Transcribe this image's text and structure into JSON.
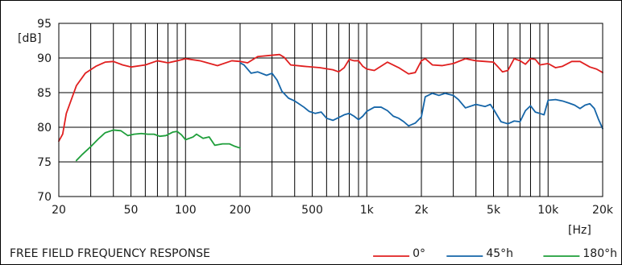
{
  "chart_data": {
    "type": "line",
    "title": "FREE FIELD FREQUENCY RESPONSE",
    "xlabel": "[Hz]",
    "ylabel": "[dB]",
    "x_scale": "log",
    "xlim": [
      20,
      20000
    ],
    "ylim": [
      70,
      95
    ],
    "grid": true,
    "legend_position": "bottom-right",
    "x_ticks": [
      20,
      50,
      100,
      200,
      500,
      1000,
      2000,
      5000,
      10000,
      20000
    ],
    "x_tick_labels": [
      "20",
      "50",
      "100",
      "200",
      "500",
      "1k",
      "2k",
      "5k",
      "10k",
      "20k"
    ],
    "y_ticks": [
      70,
      75,
      80,
      85,
      90,
      95
    ],
    "y_tick_labels": [
      "70",
      "75",
      "80",
      "85",
      "90",
      "95"
    ],
    "series": [
      {
        "name": "0°",
        "color": "#e02020",
        "points": [
          [
            20,
            78
          ],
          [
            21,
            79
          ],
          [
            22,
            82
          ],
          [
            25,
            86
          ],
          [
            28,
            87.8
          ],
          [
            32,
            88.8
          ],
          [
            36,
            89.4
          ],
          [
            40,
            89.5
          ],
          [
            45,
            89
          ],
          [
            50,
            88.7
          ],
          [
            60,
            89
          ],
          [
            70,
            89.6
          ],
          [
            80,
            89.3
          ],
          [
            90,
            89.6
          ],
          [
            100,
            89.9
          ],
          [
            120,
            89.6
          ],
          [
            150,
            88.9
          ],
          [
            180,
            89.6
          ],
          [
            200,
            89.5
          ],
          [
            220,
            89.3
          ],
          [
            250,
            90.2
          ],
          [
            300,
            90.4
          ],
          [
            330,
            90.5
          ],
          [
            350,
            90.1
          ],
          [
            380,
            89
          ],
          [
            450,
            88.8
          ],
          [
            550,
            88.6
          ],
          [
            650,
            88.3
          ],
          [
            700,
            88
          ],
          [
            750,
            88.6
          ],
          [
            800,
            89.8
          ],
          [
            850,
            89.6
          ],
          [
            900,
            89.6
          ],
          [
            950,
            88.8
          ],
          [
            1000,
            88.4
          ],
          [
            1100,
            88.2
          ],
          [
            1300,
            89.4
          ],
          [
            1500,
            88.6
          ],
          [
            1700,
            87.7
          ],
          [
            1850,
            87.9
          ],
          [
            2000,
            89.6
          ],
          [
            2100,
            89.9
          ],
          [
            2300,
            89
          ],
          [
            2600,
            88.9
          ],
          [
            3000,
            89.2
          ],
          [
            3500,
            89.9
          ],
          [
            4000,
            89.6
          ],
          [
            4500,
            89.5
          ],
          [
            5000,
            89.4
          ],
          [
            5300,
            88.7
          ],
          [
            5600,
            88
          ],
          [
            6000,
            88.2
          ],
          [
            6500,
            89.9
          ],
          [
            7000,
            89.6
          ],
          [
            7500,
            89.1
          ],
          [
            8000,
            89.9
          ],
          [
            8500,
            89.8
          ],
          [
            9000,
            89
          ],
          [
            10000,
            89.2
          ],
          [
            11000,
            88.6
          ],
          [
            12000,
            88.8
          ],
          [
            13500,
            89.5
          ],
          [
            15000,
            89.5
          ],
          [
            17000,
            88.7
          ],
          [
            18500,
            88.4
          ],
          [
            20000,
            87.9
          ]
        ]
      },
      {
        "name": "45°h",
        "color": "#1565a8",
        "points": [
          [
            200,
            89.3
          ],
          [
            210,
            89
          ],
          [
            230,
            87.8
          ],
          [
            250,
            88
          ],
          [
            280,
            87.5
          ],
          [
            300,
            87.8
          ],
          [
            320,
            86.8
          ],
          [
            340,
            85.2
          ],
          [
            370,
            84.2
          ],
          [
            400,
            83.8
          ],
          [
            450,
            82.9
          ],
          [
            480,
            82.3
          ],
          [
            520,
            82
          ],
          [
            560,
            82.2
          ],
          [
            600,
            81.3
          ],
          [
            650,
            81
          ],
          [
            700,
            81.4
          ],
          [
            750,
            81.8
          ],
          [
            800,
            82
          ],
          [
            850,
            81.6
          ],
          [
            900,
            81.1
          ],
          [
            950,
            81.6
          ],
          [
            1000,
            82.3
          ],
          [
            1100,
            82.9
          ],
          [
            1200,
            82.9
          ],
          [
            1300,
            82.4
          ],
          [
            1400,
            81.6
          ],
          [
            1500,
            81.3
          ],
          [
            1600,
            80.8
          ],
          [
            1700,
            80.2
          ],
          [
            1850,
            80.6
          ],
          [
            2000,
            81.5
          ],
          [
            2100,
            84.4
          ],
          [
            2300,
            84.9
          ],
          [
            2500,
            84.6
          ],
          [
            2700,
            84.9
          ],
          [
            3000,
            84.6
          ],
          [
            3200,
            84
          ],
          [
            3500,
            82.8
          ],
          [
            4000,
            83.3
          ],
          [
            4500,
            83
          ],
          [
            4800,
            83.3
          ],
          [
            5000,
            82.6
          ],
          [
            5500,
            80.8
          ],
          [
            6000,
            80.5
          ],
          [
            6500,
            80.9
          ],
          [
            7000,
            80.8
          ],
          [
            7500,
            82.4
          ],
          [
            8000,
            83.1
          ],
          [
            8500,
            82.2
          ],
          [
            9000,
            82
          ],
          [
            9500,
            81.8
          ],
          [
            10000,
            83.9
          ],
          [
            11000,
            84
          ],
          [
            12000,
            83.8
          ],
          [
            13000,
            83.5
          ],
          [
            14000,
            83.2
          ],
          [
            15000,
            82.7
          ],
          [
            16000,
            83.2
          ],
          [
            17000,
            83.4
          ],
          [
            18000,
            82.7
          ],
          [
            19000,
            81.1
          ],
          [
            20000,
            79.8
          ]
        ]
      },
      {
        "name": "180°h",
        "color": "#1e9e3a",
        "points": [
          [
            25,
            75.2
          ],
          [
            27,
            76.1
          ],
          [
            30,
            77.2
          ],
          [
            33,
            78.3
          ],
          [
            36,
            79.2
          ],
          [
            40,
            79.6
          ],
          [
            44,
            79.5
          ],
          [
            48,
            78.8
          ],
          [
            52,
            79
          ],
          [
            57,
            79.1
          ],
          [
            62,
            79
          ],
          [
            67,
            79
          ],
          [
            72,
            78.7
          ],
          [
            78,
            78.8
          ],
          [
            85,
            79.3
          ],
          [
            90,
            79.4
          ],
          [
            95,
            78.9
          ],
          [
            100,
            78.2
          ],
          [
            110,
            78.6
          ],
          [
            115,
            79
          ],
          [
            125,
            78.4
          ],
          [
            135,
            78.6
          ],
          [
            145,
            77.4
          ],
          [
            160,
            77.6
          ],
          [
            175,
            77.6
          ],
          [
            185,
            77.3
          ],
          [
            200,
            77
          ]
        ]
      }
    ]
  }
}
